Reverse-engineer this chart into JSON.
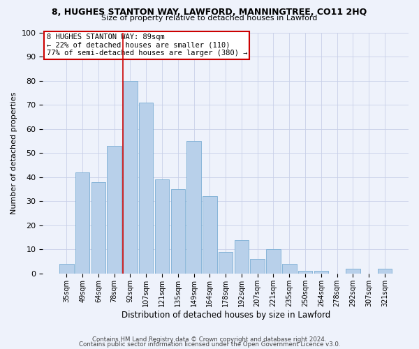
{
  "title1": "8, HUGHES STANTON WAY, LAWFORD, MANNINGTREE, CO11 2HQ",
  "title2": "Size of property relative to detached houses in Lawford",
  "xlabel": "Distribution of detached houses by size in Lawford",
  "ylabel": "Number of detached properties",
  "categories": [
    "35sqm",
    "49sqm",
    "64sqm",
    "78sqm",
    "92sqm",
    "107sqm",
    "121sqm",
    "135sqm",
    "149sqm",
    "164sqm",
    "178sqm",
    "192sqm",
    "207sqm",
    "221sqm",
    "235sqm",
    "250sqm",
    "264sqm",
    "278sqm",
    "292sqm",
    "307sqm",
    "321sqm"
  ],
  "values": [
    4,
    42,
    38,
    53,
    80,
    71,
    39,
    35,
    55,
    32,
    9,
    14,
    6,
    10,
    4,
    1,
    1,
    0,
    2,
    0,
    2
  ],
  "bar_color": "#b8d0ea",
  "bar_edge_color": "#7aadd4",
  "vline_index": 4,
  "vline_color": "#cc0000",
  "ylim": [
    0,
    100
  ],
  "annotation_text": "8 HUGHES STANTON WAY: 89sqm\n← 22% of detached houses are smaller (110)\n77% of semi-detached houses are larger (380) →",
  "annotation_box_color": "#ffffff",
  "annotation_box_edge": "#cc0000",
  "footer1": "Contains HM Land Registry data © Crown copyright and database right 2024.",
  "footer2": "Contains public sector information licensed under the Open Government Licence v3.0.",
  "bg_color": "#eef2fb",
  "grid_color": "#c8d0e8"
}
